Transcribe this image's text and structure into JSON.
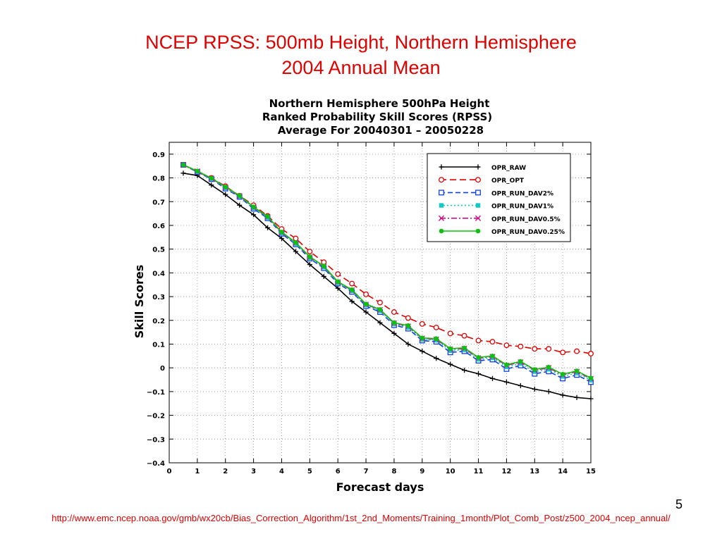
{
  "slide": {
    "title_line1": "NCEP RPSS: 500mb Height, Northern Hemisphere",
    "title_line2": "2004 Annual Mean",
    "page_number": "5",
    "source_url": "http://www.emc.ncep.noaa.gov/gmb/wx20cb/Bias_Correction_Algorithm/1st_2nd_Moments/Training_1month/Plot_Comb_Post/z500_2004_ncep_annual/"
  },
  "chart_data": {
    "type": "line",
    "title": [
      "Northern Hemisphere 500hPa Height",
      "Ranked Probability Skill Scores (RPSS)",
      "Average For 20040301 – 20050228"
    ],
    "xlabel": "Forecast days",
    "ylabel": "Skill Scores",
    "xlim": [
      0,
      15
    ],
    "ylim": [
      -0.4,
      0.95
    ],
    "xticks": [
      0,
      1,
      2,
      3,
      4,
      5,
      6,
      7,
      8,
      9,
      10,
      11,
      12,
      13,
      14,
      15
    ],
    "yticks": [
      -0.4,
      -0.3,
      -0.2,
      -0.1,
      0,
      0.1,
      0.2,
      0.3,
      0.4,
      0.5,
      0.6,
      0.7,
      0.8,
      0.9
    ],
    "ytick_labels": [
      "−0.4",
      "−0.3",
      "−0.2",
      "−0.1",
      "0",
      "0.1",
      "0.2",
      "0.3",
      "0.4",
      "0.5",
      "0.6",
      "0.7",
      "0.8",
      "0.9"
    ],
    "grid": true,
    "legend_position": "top-right",
    "x": [
      0.5,
      1,
      1.5,
      2,
      2.5,
      3,
      3.5,
      4,
      4.5,
      5,
      5.5,
      6,
      6.5,
      7,
      7.5,
      8,
      8.5,
      9,
      9.5,
      10,
      10.5,
      11,
      11.5,
      12,
      12.5,
      13,
      13.5,
      14,
      14.5,
      15
    ],
    "series": [
      {
        "name": "OPR_RAW",
        "color": "#000000",
        "dash": "",
        "marker": "plus",
        "values": [
          0.82,
          0.81,
          0.77,
          0.73,
          0.685,
          0.645,
          0.59,
          0.545,
          0.49,
          0.435,
          0.385,
          0.335,
          0.28,
          0.235,
          0.19,
          0.145,
          0.1,
          0.07,
          0.04,
          0.015,
          -0.01,
          -0.025,
          -0.045,
          -0.06,
          -0.075,
          -0.09,
          -0.1,
          -0.115,
          -0.125,
          -0.13
        ]
      },
      {
        "name": "OPR_OPT",
        "color": "#e00000",
        "dash": "9,5",
        "marker": "circle",
        "values": [
          0.855,
          0.825,
          0.8,
          0.765,
          0.725,
          0.685,
          0.64,
          0.585,
          0.545,
          0.49,
          0.445,
          0.395,
          0.355,
          0.31,
          0.275,
          0.235,
          0.21,
          0.185,
          0.17,
          0.145,
          0.135,
          0.115,
          0.11,
          0.095,
          0.09,
          0.08,
          0.08,
          0.065,
          0.07,
          0.06
        ]
      },
      {
        "name": "OPR_RUN_DAV2%",
        "color": "#1040e0",
        "dash": "7,4",
        "marker": "square",
        "values": [
          0.855,
          0.825,
          0.795,
          0.755,
          0.72,
          0.67,
          0.63,
          0.565,
          0.52,
          0.46,
          0.42,
          0.355,
          0.32,
          0.26,
          0.235,
          0.18,
          0.165,
          0.115,
          0.11,
          0.065,
          0.07,
          0.03,
          0.035,
          -0.005,
          0.01,
          -0.025,
          -0.015,
          -0.045,
          -0.03,
          -0.06
        ]
      },
      {
        "name": "OPR_RUN_DAV1%",
        "color": "#10c8c8",
        "dash": "2,3",
        "marker": "filled-square",
        "values": [
          0.855,
          0.827,
          0.797,
          0.758,
          0.722,
          0.673,
          0.633,
          0.568,
          0.523,
          0.463,
          0.424,
          0.358,
          0.324,
          0.264,
          0.24,
          0.185,
          0.17,
          0.12,
          0.116,
          0.072,
          0.076,
          0.036,
          0.042,
          0.004,
          0.018,
          -0.016,
          -0.006,
          -0.036,
          -0.022,
          -0.052
        ]
      },
      {
        "name": "OPR_RUN_DAV0.5%",
        "color": "#d0108a",
        "dash": "8,3,2,3",
        "marker": "x",
        "values": [
          0.855,
          0.828,
          0.798,
          0.76,
          0.724,
          0.676,
          0.636,
          0.57,
          0.526,
          0.466,
          0.427,
          0.361,
          0.327,
          0.267,
          0.244,
          0.188,
          0.175,
          0.124,
          0.12,
          0.078,
          0.081,
          0.041,
          0.047,
          0.01,
          0.024,
          -0.01,
          0.0,
          -0.03,
          -0.016,
          -0.046
        ]
      },
      {
        "name": "OPR_RUN_DAV0.25%",
        "color": "#10c010",
        "dash": "",
        "marker": "filled-circle",
        "values": [
          0.855,
          0.829,
          0.799,
          0.762,
          0.726,
          0.678,
          0.638,
          0.572,
          0.528,
          0.468,
          0.429,
          0.363,
          0.329,
          0.269,
          0.246,
          0.19,
          0.178,
          0.126,
          0.123,
          0.081,
          0.084,
          0.044,
          0.05,
          0.013,
          0.027,
          -0.007,
          0.003,
          -0.027,
          -0.013,
          -0.043
        ]
      }
    ]
  }
}
